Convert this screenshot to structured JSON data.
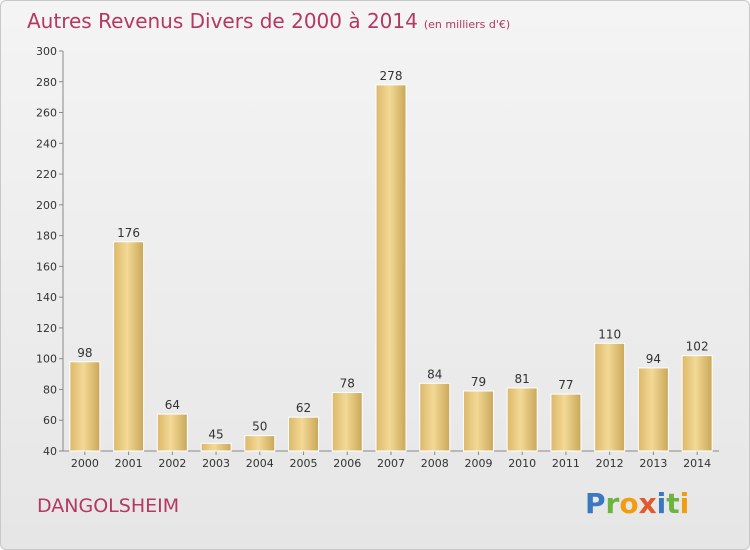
{
  "chart_data": {
    "type": "bar",
    "title": "Autres Revenus Divers de 2000 à 2014",
    "subtitle": "(en milliers d'€)",
    "categories": [
      "2000",
      "2001",
      "2002",
      "2003",
      "2004",
      "2005",
      "2006",
      "2007",
      "2008",
      "2009",
      "2010",
      "2011",
      "2012",
      "2013",
      "2014"
    ],
    "values": [
      98,
      176,
      64,
      45,
      50,
      62,
      78,
      278,
      84,
      79,
      81,
      77,
      110,
      94,
      102
    ],
    "ylim": [
      40,
      300
    ],
    "ytick_step": 20,
    "grid": false,
    "bar_color": "#f0d48c"
  },
  "footer": {
    "location": "DANGOLSHEIM",
    "logo_letters": [
      {
        "ch": "P",
        "color": "#3a78c2"
      },
      {
        "ch": "r",
        "color": "#6db33f"
      },
      {
        "ch": "o",
        "color": "#f39c12"
      },
      {
        "ch": "x",
        "color": "#e05a2b"
      },
      {
        "ch": "i",
        "color": "#3a78c2"
      },
      {
        "ch": "t",
        "color": "#6db33f"
      },
      {
        "ch": "i",
        "color": "#f39c12"
      }
    ]
  }
}
